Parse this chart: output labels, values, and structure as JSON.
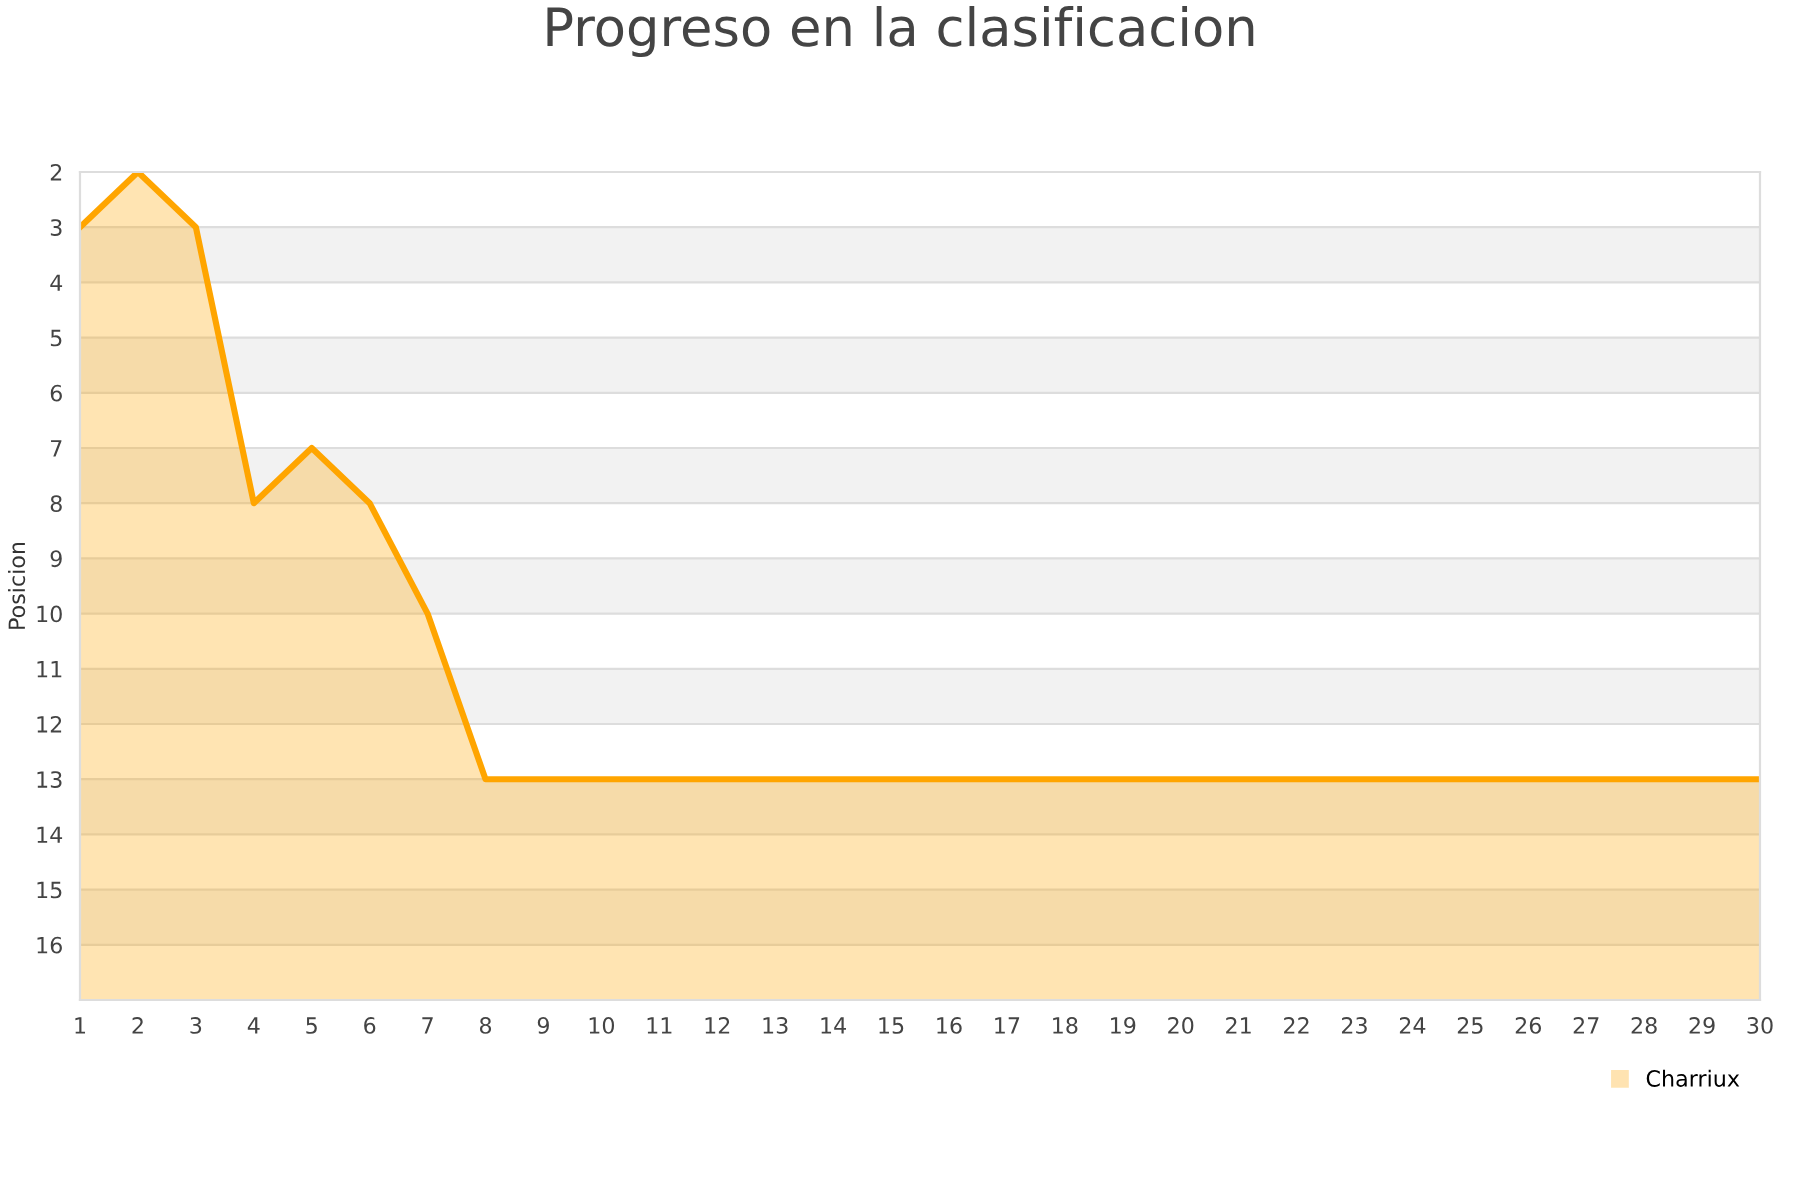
{
  "chart_data": {
    "type": "area",
    "title": "Progreso en la clasificacion",
    "ylabel": "Posicion",
    "x": [
      1,
      2,
      3,
      4,
      5,
      6,
      7,
      8,
      9,
      10,
      11,
      12,
      13,
      14,
      15,
      16,
      17,
      18,
      19,
      20,
      21,
      22,
      23,
      24,
      25,
      26,
      27,
      28,
      29,
      30
    ],
    "series": [
      {
        "name": "Charriux",
        "color": "#ffa500",
        "values": [
          3,
          2,
          3,
          8,
          7,
          8,
          10,
          13,
          13,
          13,
          13,
          13,
          13,
          13,
          13,
          13,
          13,
          13,
          13,
          13,
          13,
          13,
          13,
          13,
          13,
          13,
          13,
          13,
          13,
          13
        ]
      }
    ],
    "xlim": [
      1,
      30
    ],
    "xticks": [
      1,
      2,
      3,
      4,
      5,
      6,
      7,
      8,
      9,
      10,
      11,
      12,
      13,
      14,
      15,
      16,
      17,
      18,
      19,
      20,
      21,
      22,
      23,
      24,
      25,
      26,
      27,
      28,
      29,
      30
    ],
    "ylim": [
      17,
      2
    ],
    "yticks": [
      2,
      3,
      4,
      5,
      6,
      7,
      8,
      9,
      10,
      11,
      12,
      13,
      14,
      15,
      16
    ],
    "grid": "y",
    "legend": "bottom right",
    "bands": [
      {
        "axis": "y",
        "from": 3,
        "to": 4,
        "color": "#f2f2f2"
      },
      {
        "axis": "y",
        "from": 5,
        "to": 6,
        "color": "#f2f2f2"
      },
      {
        "axis": "y",
        "from": 7,
        "to": 8,
        "color": "#f2f2f2"
      },
      {
        "axis": "y",
        "from": 9,
        "to": 10,
        "color": "#f2f2f2"
      },
      {
        "axis": "y",
        "from": 11,
        "to": 12,
        "color": "#f2f2f2"
      },
      {
        "axis": "y",
        "from": 13,
        "to": 14,
        "color": "#f2f2f2"
      },
      {
        "axis": "y",
        "from": 15,
        "to": 16,
        "color": "#f2f2f2"
      }
    ]
  }
}
